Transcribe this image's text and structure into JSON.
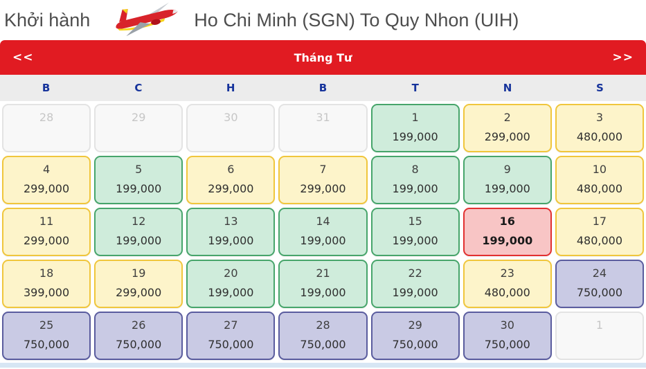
{
  "header": {
    "departure_label": "Khởi hành",
    "route_title": "Ho Chi Minh (SGN) To Quy Nhon (UIH)",
    "plane_icon": "vietjet-plane-icon"
  },
  "month_bar": {
    "prev_label": "<<",
    "month_label": "Tháng Tư",
    "next_label": ">>",
    "background_color": "#e11b22",
    "text_color": "#ffffff"
  },
  "calendar": {
    "weekdays": [
      "B",
      "C",
      "H",
      "B",
      "T",
      "N",
      "S"
    ],
    "weekday_text_color": "#16339b",
    "fare_colors": {
      "green_bg": "#cfecdb",
      "green_border": "#47a56b",
      "yellow_bg": "#fdf4ca",
      "yellow_border": "#f0c63c",
      "purple_bg": "#c9cae4",
      "purple_border": "#5a5c9e",
      "selected_bg": "#f8c5c5",
      "selected_border": "#e23030",
      "muted_bg": "#f8f8f8",
      "muted_border": "#e3e3e3"
    },
    "cells": [
      {
        "day": "28",
        "price": "",
        "type": "muted"
      },
      {
        "day": "29",
        "price": "",
        "type": "muted"
      },
      {
        "day": "30",
        "price": "",
        "type": "muted"
      },
      {
        "day": "31",
        "price": "",
        "type": "muted"
      },
      {
        "day": "1",
        "price": "199,000",
        "type": "green"
      },
      {
        "day": "2",
        "price": "299,000",
        "type": "yellow"
      },
      {
        "day": "3",
        "price": "480,000",
        "type": "yellow"
      },
      {
        "day": "4",
        "price": "299,000",
        "type": "yellow"
      },
      {
        "day": "5",
        "price": "199,000",
        "type": "green"
      },
      {
        "day": "6",
        "price": "299,000",
        "type": "yellow"
      },
      {
        "day": "7",
        "price": "299,000",
        "type": "yellow"
      },
      {
        "day": "8",
        "price": "199,000",
        "type": "green"
      },
      {
        "day": "9",
        "price": "199,000",
        "type": "green"
      },
      {
        "day": "10",
        "price": "480,000",
        "type": "yellow"
      },
      {
        "day": "11",
        "price": "299,000",
        "type": "yellow"
      },
      {
        "day": "12",
        "price": "199,000",
        "type": "green"
      },
      {
        "day": "13",
        "price": "199,000",
        "type": "green"
      },
      {
        "day": "14",
        "price": "199,000",
        "type": "green"
      },
      {
        "day": "15",
        "price": "199,000",
        "type": "green"
      },
      {
        "day": "16",
        "price": "199,000",
        "type": "selected"
      },
      {
        "day": "17",
        "price": "480,000",
        "type": "yellow"
      },
      {
        "day": "18",
        "price": "399,000",
        "type": "yellow"
      },
      {
        "day": "19",
        "price": "299,000",
        "type": "yellow"
      },
      {
        "day": "20",
        "price": "199,000",
        "type": "green"
      },
      {
        "day": "21",
        "price": "199,000",
        "type": "green"
      },
      {
        "day": "22",
        "price": "199,000",
        "type": "green"
      },
      {
        "day": "23",
        "price": "480,000",
        "type": "yellow"
      },
      {
        "day": "24",
        "price": "750,000",
        "type": "purple"
      },
      {
        "day": "25",
        "price": "750,000",
        "type": "purple"
      },
      {
        "day": "26",
        "price": "750,000",
        "type": "purple"
      },
      {
        "day": "27",
        "price": "750,000",
        "type": "purple"
      },
      {
        "day": "28",
        "price": "750,000",
        "type": "purple"
      },
      {
        "day": "29",
        "price": "750,000",
        "type": "purple"
      },
      {
        "day": "30",
        "price": "750,000",
        "type": "purple"
      },
      {
        "day": "1",
        "price": "",
        "type": "muted"
      }
    ]
  }
}
